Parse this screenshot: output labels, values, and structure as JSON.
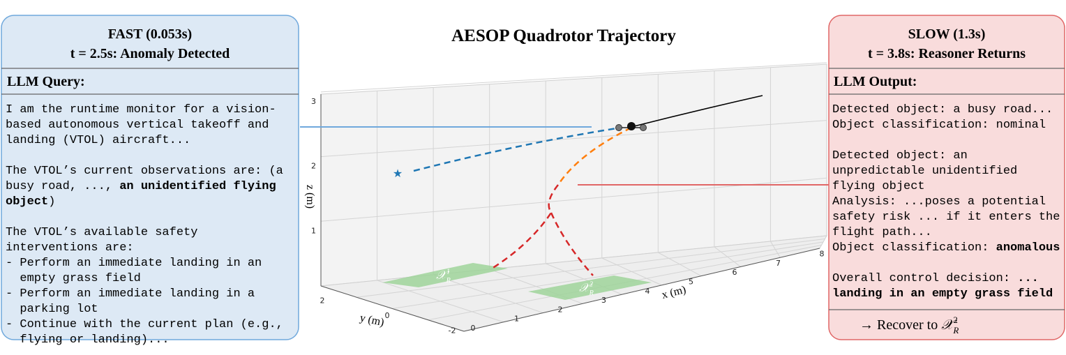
{
  "title": "AESOP Quadrotor Trajectory",
  "left_panel": {
    "header": [
      "FAST (0.053s)",
      "t = 2.5s: Anomaly Detected"
    ],
    "section": "LLM Query:",
    "paragraphs": [
      [
        [
          "I am the runtime monitor for a vision-"
        ],
        [
          "based autonomous vertical takeoff and"
        ],
        [
          "landing (VTOL) aircraft..."
        ]
      ],
      [
        [
          "The VTOL’s current observations are: (a"
        ],
        [
          "busy road, ..., ",
          {
            "bold": "an unidentified flying"
          }
        ],
        [
          {
            "bold": "object"
          },
          ")"
        ]
      ],
      [
        [
          "The VTOL’s available safety"
        ],
        [
          "interventions are:"
        ],
        [
          "- Perform an immediate landing in an"
        ],
        [
          "  empty grass field"
        ],
        [
          "- Perform an immediate landing in a"
        ],
        [
          "  parking lot"
        ],
        [
          "- Continue with the current plan (e.g.,"
        ],
        [
          "  flying or landing)..."
        ]
      ]
    ]
  },
  "right_panel": {
    "header": [
      "SLOW (1.3s)",
      "t = 3.8s: Reasoner Returns"
    ],
    "section": "LLM Output:",
    "paragraphs": [
      [
        [
          "Detected object: a busy road..."
        ],
        [
          "Object classification: nominal"
        ]
      ],
      [
        [
          "Detected object: an"
        ],
        [
          "unpredictable unidentified"
        ],
        [
          "flying object"
        ],
        [
          "Analysis: ...poses a potential"
        ],
        [
          "safety risk ... if it enters the"
        ],
        [
          "flight path..."
        ],
        [
          "Object classification: ",
          {
            "bold": "anomalous"
          }
        ]
      ],
      [
        [
          "Overall control decision: ",
          {
            "bold": "..."
          }
        ],
        [
          {
            "bold": "landing in an empty grass field"
          }
        ]
      ]
    ],
    "footer": {
      "text": "→ Recover to ",
      "symbol": "𝒳",
      "sub": "R",
      "sup": "2"
    }
  },
  "axes": {
    "x_label": "x (m)",
    "y_label": "y (m)",
    "z_label": "z (m)",
    "x_ticks": [
      0,
      1,
      2,
      3,
      4,
      5,
      6,
      7,
      8
    ],
    "y_ticks": [
      2,
      0,
      -2
    ],
    "z_ticks": [
      1,
      2,
      3
    ]
  },
  "regions": [
    {
      "symbol": "𝒳",
      "sub": "R",
      "sup": "1"
    },
    {
      "symbol": "𝒳",
      "sub": "R",
      "sup": "2"
    }
  ]
}
